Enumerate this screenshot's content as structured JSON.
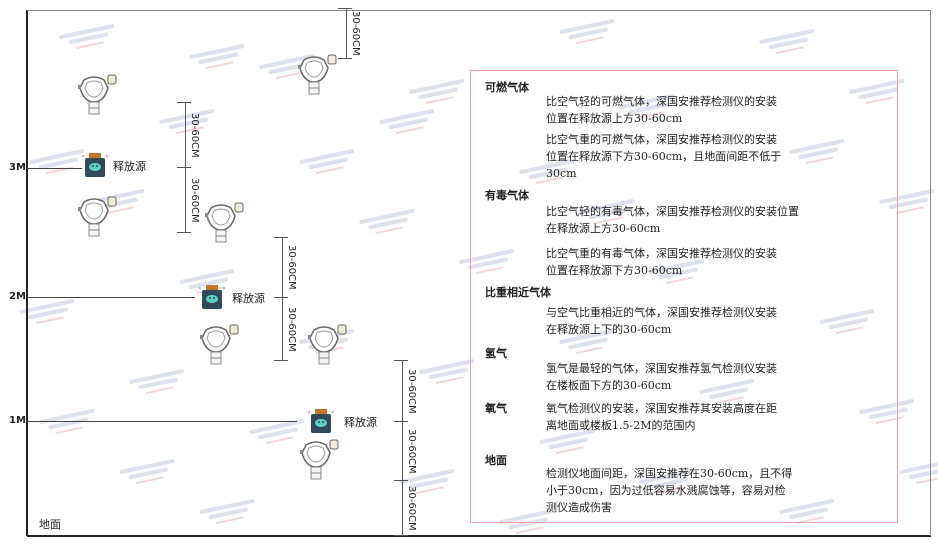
{
  "watermark": {
    "brand": "SINGOAN",
    "chinese": "深国安"
  },
  "levels": [
    "3M",
    "2M",
    "1M"
  ],
  "ground_label": "地面",
  "source_label": "释放源",
  "dimension_label": "30-60CM",
  "colors": {
    "frame_border": "#f0a0a8",
    "source_body": "#2f4a5a",
    "source_cap": "#c8742a",
    "source_face": "#5fd0c0"
  },
  "info": [
    {
      "heading": "可燃气体",
      "paragraphs": [
        [
          "比空气轻的可燃气体，深国安推荐检测仪的安装",
          "位置在释放源上方30-60cm"
        ],
        [
          "比空气重的可燃气体，深国安推荐检测仪的安装",
          "位置在释放源下方30-60cm，且地面间距不低于",
          "30cm"
        ]
      ]
    },
    {
      "heading": "有毒气体",
      "paragraphs": [
        [
          "比空气轻的有毒气体，深国安推荐检测仪的安装位置",
          "在释放源上方30-60cm"
        ],
        [
          "比空气重的有毒气体，深国安推荐检测仪的安装",
          "位置在释放源下方30-60cm"
        ]
      ]
    },
    {
      "heading": "比重相近气体",
      "paragraphs": [
        [
          "与空气比重相近的气体，深国安推荐检测仪安装",
          "在释放源上下的30-60cm"
        ]
      ]
    },
    {
      "heading": "氢气",
      "paragraphs": [
        [
          "氢气是最轻的气体，深国安推荐氢气检测仪安装",
          "在楼板面下方的30-60cm"
        ]
      ]
    },
    {
      "heading": "氧气",
      "paragraphs": [
        [
          "氧气检测仪的安装，深国安推荐其安装高度在距",
          "离地面或楼板1.5-2M的范围内"
        ]
      ]
    },
    {
      "heading": "地面",
      "paragraphs": [
        [
          "检测仪地面间距，深国安推荐在30-60cm，且不得",
          "小于30cm，因为过低容易水溅腐蚀等，容易对检",
          "测仪造成伤害"
        ]
      ]
    }
  ]
}
